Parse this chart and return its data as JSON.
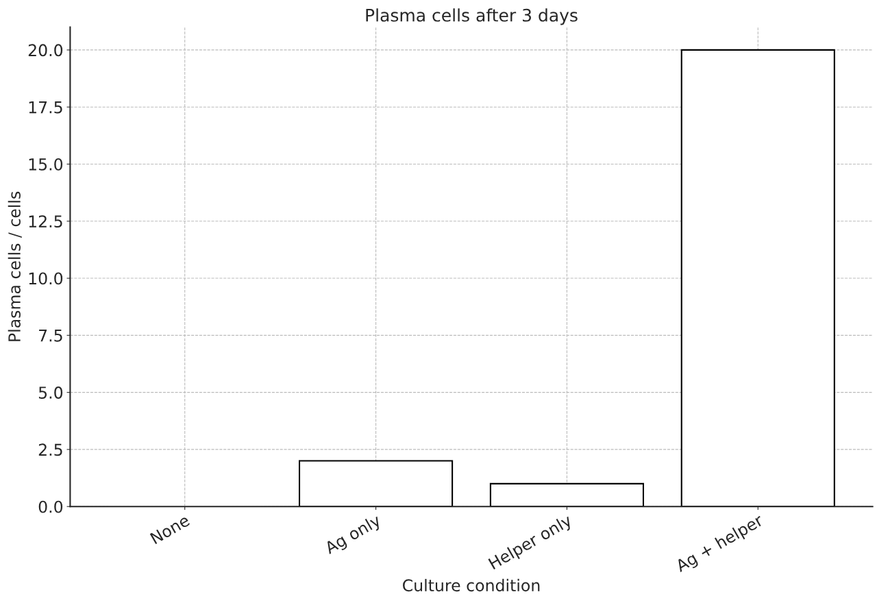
{
  "chart_data": {
    "type": "bar",
    "title": "Plasma cells after 3 days",
    "xlabel": "Culture condition",
    "ylabel": "Plasma cells / cells",
    "categories": [
      "None",
      "Ag only",
      "Helper only",
      "Ag + helper"
    ],
    "values": [
      0,
      2,
      1,
      20
    ],
    "color": "#ffffff",
    "ylim": [
      0,
      21
    ],
    "yticks": [
      {
        "value": 0,
        "label": "0.0"
      },
      {
        "value": 2.5,
        "label": "2.5"
      },
      {
        "value": 5,
        "label": "5.0"
      },
      {
        "value": 7.5,
        "label": "7.5"
      },
      {
        "value": 10,
        "label": "10.0"
      },
      {
        "value": 12.5,
        "label": "12.5"
      },
      {
        "value": 15,
        "label": "15.0"
      },
      {
        "value": 17.5,
        "label": "17.5"
      },
      {
        "value": 20,
        "label": "20.0"
      }
    ],
    "grid": true
  }
}
